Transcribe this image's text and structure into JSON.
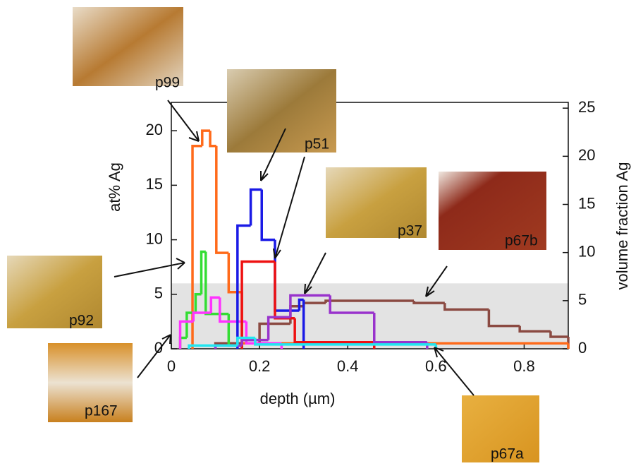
{
  "chart_data": {
    "type": "step",
    "xlabel": "depth (µm)",
    "ylabel": "at% Ag",
    "y2label": "volume fraction Ag",
    "xlim": [
      0,
      0.9
    ],
    "xticks": [
      0,
      0.2,
      0.4,
      0.6,
      0.8
    ],
    "ylim": [
      0,
      22.6
    ],
    "yticks": [
      0,
      5,
      10,
      15,
      20
    ],
    "y2lim": [
      0,
      25.6
    ],
    "y2ticks": [
      0,
      5,
      10,
      15,
      20,
      25
    ],
    "shaded_region": {
      "axis": "y2",
      "range": [
        0,
        6.8
      ],
      "color": "#e3e3e3"
    },
    "series": [
      {
        "color": "#8b4a42",
        "bins": [
          0.1,
          0.2,
          0.27,
          0.3,
          0.35,
          0.55,
          0.62,
          0.72,
          0.79,
          0.86,
          0.9
        ],
        "values": [
          0.5,
          2.3,
          3.9,
          4.2,
          4.4,
          4.2,
          3.6,
          2.1,
          1.6,
          1.1
        ]
      },
      {
        "color": "#ff6a1a",
        "bins": [
          0.048,
          0.07,
          0.088,
          0.102,
          0.13,
          0.16,
          0.9
        ],
        "values": [
          18.6,
          20,
          18.6,
          8.8,
          5.2,
          0.5
        ]
      },
      {
        "color": "#33dd33",
        "bins": [
          0.02,
          0.035,
          0.055,
          0.068,
          0.078,
          0.13,
          0.16
        ],
        "values": [
          1,
          3.3,
          5,
          8.9,
          3.2,
          0.3
        ]
      },
      {
        "color": "#ff33ff",
        "bins": [
          0.02,
          0.05,
          0.09,
          0.11,
          0.17,
          0.25
        ],
        "values": [
          2.5,
          3.3,
          4.7,
          2.5,
          0.5
        ]
      },
      {
        "color": "#1a1ae6",
        "bins": [
          0.15,
          0.18,
          0.205,
          0.235,
          0.29,
          0.3
        ],
        "values": [
          11.3,
          14.6,
          10,
          3.5,
          4.5
        ]
      },
      {
        "color": "#ee1111",
        "bins": [
          0.16,
          0.235,
          0.28,
          0.46
        ],
        "values": [
          8,
          2.8,
          0.6
        ]
      },
      {
        "color": "#9933cc",
        "bins": [
          0.1,
          0.16,
          0.22,
          0.27,
          0.36,
          0.46,
          0.58
        ],
        "values": [
          0.3,
          0.8,
          2.9,
          4.9,
          3.3,
          0.6
        ]
      },
      {
        "color": "#22e6f0",
        "bins": [
          0.04,
          0.15,
          0.19,
          0.6
        ],
        "values": [
          0.3,
          1,
          0.4
        ]
      }
    ],
    "annotations": [
      "p99",
      "p51",
      "p37",
      "p67b",
      "p92",
      "p167",
      "p67a"
    ]
  }
}
